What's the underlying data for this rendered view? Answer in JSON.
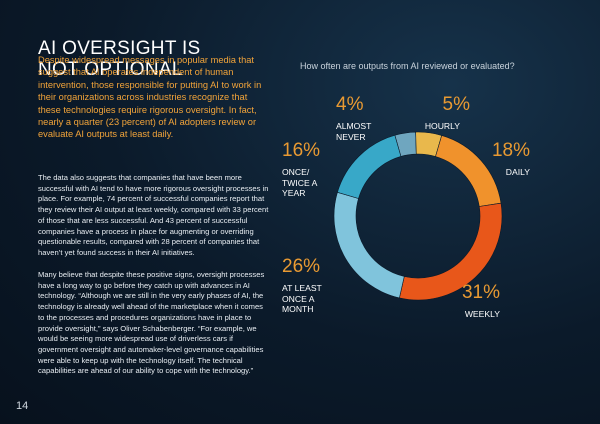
{
  "heading": [
    "AI OVERSIGHT IS",
    "NOT OPTIONAL"
  ],
  "intro": "Despite widespread messages in popular media that suggest that AI operates independent of human intervention, those responsible for putting AI to work in their organizations across industries recognize that these technologies require rigorous oversight. In fact, nearly a quarter (23 percent) of AI adopters review or evaluate AI outputs at least daily.",
  "paragraphs": [
    "The data also suggests that companies that have been more successful with AI tend to have more rigorous oversight processes in place. For example, 74 percent of successful companies report that they review their AI output at least weekly, compared with 33 percent of those that are less successful. And 43 percent of successful companies have a process in place for augmenting or overriding questionable results, compared with 28 percent of companies that haven’t yet found success in their AI initiatives.",
    "Many believe that despite these positive signs, oversight processes have a long way to go before they catch up with advances in AI technology. “Although we are still in the very early phases of AI, the technology is already well ahead of the marketplace when it comes to the processes and procedures organizations have in place to provide oversight,” says Oliver Schabenberger. “For example, we would be seeing more widespread use of driverless cars if government oversight and automaker-level governance capabilities were able to keep up with the technology itself. The technical capabilities are ahead of our ability to cope with the technology.”"
  ],
  "page_number": "14",
  "chart_data": {
    "type": "donut",
    "title": "How often are outputs from AI reviewed or evaluated?",
    "categories": [
      "ALMOST NEVER",
      "HOURLY",
      "DAILY",
      "WEEKLY",
      "AT LEAST ONCE A MONTH",
      "ONCE/ TWICE A YEAR"
    ],
    "values": [
      4,
      5,
      18,
      31,
      26,
      16
    ],
    "value_labels": [
      "4%",
      "5%",
      "18%",
      "31%",
      "26%",
      "16%"
    ],
    "colors": [
      "#6fa6bf",
      "#e9b84c",
      "#f0922c",
      "#e8571a",
      "#80c4dc",
      "#38a8c8"
    ]
  }
}
